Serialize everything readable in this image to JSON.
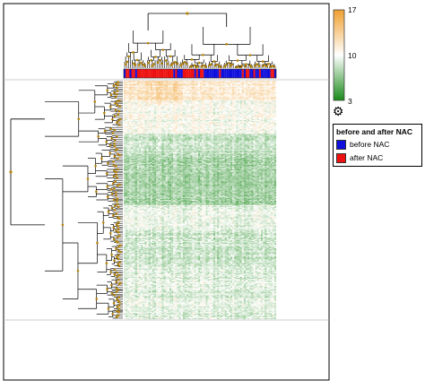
{
  "chart_data": {
    "type": "heatmap",
    "title": "",
    "xlabel": "",
    "ylabel": "",
    "color_scale": {
      "min": 3,
      "mid": 10,
      "max": 17,
      "min_label": "3",
      "mid_label": "10",
      "max_label": "17",
      "low_color": "#1a8a1a",
      "mid_color": "#ffffff",
      "high_color": "#f0a030"
    },
    "column_annotation": {
      "title": "before and after NAC",
      "groups": [
        {
          "name": "before NAC",
          "color": "#1010dd"
        },
        {
          "name": "after NAC",
          "color": "#ee1111"
        }
      ]
    },
    "dendrogram_node_color": "#b8860b",
    "columns_approx": 80,
    "rows_approx": 260
  },
  "controls": {
    "settings_icon": "gear-icon"
  }
}
